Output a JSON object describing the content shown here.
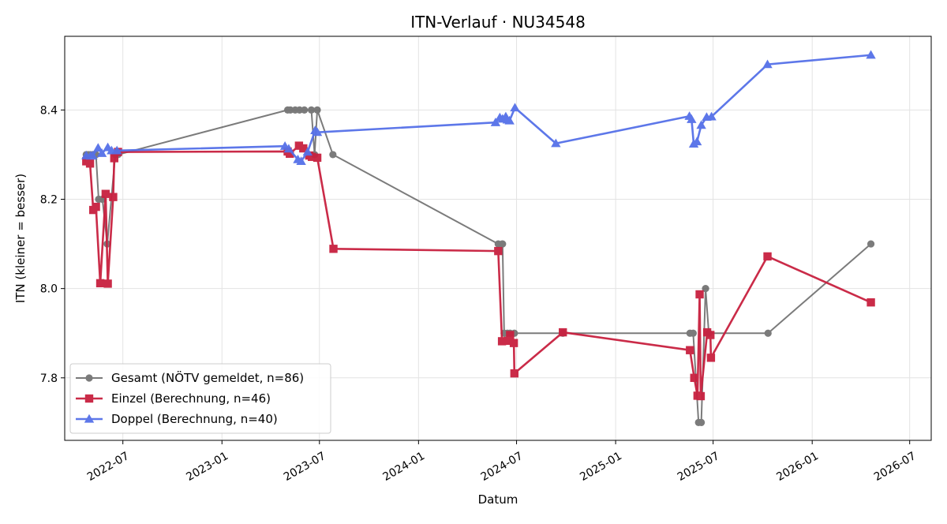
{
  "chart_data": {
    "type": "line",
    "title": "ITN-Verlauf · NU34548",
    "xlabel": "Datum",
    "ylabel": "ITN  (kleiner = besser)",
    "x_scale": "date",
    "xlim": [
      "2022-03-15",
      "2026-08-10"
    ],
    "ylim": [
      7.66,
      8.565
    ],
    "x_ticks": [
      "2022-07-01",
      "2023-01-01",
      "2023-07-01",
      "2024-01-01",
      "2024-07-01",
      "2025-01-01",
      "2025-07-01",
      "2026-01-01",
      "2026-07-01"
    ],
    "x_tick_labels": [
      "2022-07",
      "2023-01",
      "2023-07",
      "2024-01",
      "2024-07",
      "2025-01",
      "2025-07",
      "2026-01",
      "2026-07"
    ],
    "y_ticks": [
      7.8,
      8.0,
      8.2,
      8.4
    ],
    "y_tick_labels": [
      "7.8",
      "8.0",
      "8.2",
      "8.4"
    ],
    "grid": true,
    "legend_position": "lower-left",
    "series": [
      {
        "name": "Gesamt (NÖTV gemeldet, n=86)",
        "color": "#444444",
        "marker": "circle",
        "points": [
          {
            "x": "2022-04-24",
            "y": 8.3
          },
          {
            "x": "2022-04-28",
            "y": 8.3
          },
          {
            "x": "2022-05-02",
            "y": 8.3
          },
          {
            "x": "2022-05-07",
            "y": 8.3
          },
          {
            "x": "2022-05-12",
            "y": 8.3
          },
          {
            "x": "2022-05-17",
            "y": 8.2
          },
          {
            "x": "2022-05-24",
            "y": 8.2
          },
          {
            "x": "2022-06-02",
            "y": 8.1
          },
          {
            "x": "2022-06-17",
            "y": 8.3
          },
          {
            "x": "2022-06-22",
            "y": 8.3
          },
          {
            "x": "2023-05-03",
            "y": 8.4
          },
          {
            "x": "2023-05-08",
            "y": 8.4
          },
          {
            "x": "2023-05-17",
            "y": 8.4
          },
          {
            "x": "2023-05-25",
            "y": 8.4
          },
          {
            "x": "2023-06-03",
            "y": 8.4
          },
          {
            "x": "2023-06-16",
            "y": 8.4
          },
          {
            "x": "2023-06-22",
            "y": 8.3
          },
          {
            "x": "2023-06-27",
            "y": 8.4
          },
          {
            "x": "2023-07-26",
            "y": 8.3
          },
          {
            "x": "2024-05-28",
            "y": 8.1
          },
          {
            "x": "2024-06-05",
            "y": 8.1
          },
          {
            "x": "2024-06-08",
            "y": 7.9
          },
          {
            "x": "2024-06-14",
            "y": 7.9
          },
          {
            "x": "2024-06-19",
            "y": 7.9
          },
          {
            "x": "2024-06-27",
            "y": 7.9
          },
          {
            "x": "2024-09-25",
            "y": 7.9
          },
          {
            "x": "2025-05-19",
            "y": 7.9
          },
          {
            "x": "2025-05-25",
            "y": 7.9
          },
          {
            "x": "2025-06-04",
            "y": 7.7
          },
          {
            "x": "2025-06-09",
            "y": 7.7
          },
          {
            "x": "2025-06-17",
            "y": 8.0
          },
          {
            "x": "2025-06-23",
            "y": 7.9
          },
          {
            "x": "2025-10-11",
            "y": 7.9
          },
          {
            "x": "2026-04-20",
            "y": 8.1
          }
        ]
      },
      {
        "name": "Einzel (Berechnung, n=46)",
        "color": "#c8203f",
        "marker": "square",
        "points": [
          {
            "x": "2022-04-24",
            "y": 8.285
          },
          {
            "x": "2022-05-01",
            "y": 8.28
          },
          {
            "x": "2022-05-07",
            "y": 8.176
          },
          {
            "x": "2022-05-12",
            "y": 8.183
          },
          {
            "x": "2022-05-20",
            "y": 8.012
          },
          {
            "x": "2022-05-30",
            "y": 8.212
          },
          {
            "x": "2022-06-03",
            "y": 8.011
          },
          {
            "x": "2022-06-13",
            "y": 8.205
          },
          {
            "x": "2022-06-15",
            "y": 8.292
          },
          {
            "x": "2022-06-22",
            "y": 8.306
          },
          {
            "x": "2023-05-03",
            "y": 8.307
          },
          {
            "x": "2023-05-07",
            "y": 8.302
          },
          {
            "x": "2023-05-24",
            "y": 8.32
          },
          {
            "x": "2023-06-01",
            "y": 8.314
          },
          {
            "x": "2023-06-12",
            "y": 8.298
          },
          {
            "x": "2023-06-17",
            "y": 8.295
          },
          {
            "x": "2023-06-27",
            "y": 8.293
          },
          {
            "x": "2023-07-27",
            "y": 8.089
          },
          {
            "x": "2024-05-28",
            "y": 8.084
          },
          {
            "x": "2024-06-04",
            "y": 7.882
          },
          {
            "x": "2024-06-15",
            "y": 7.883
          },
          {
            "x": "2024-06-19",
            "y": 7.896
          },
          {
            "x": "2024-06-26",
            "y": 7.878
          },
          {
            "x": "2024-06-27",
            "y": 7.81
          },
          {
            "x": "2024-09-25",
            "y": 7.902
          },
          {
            "x": "2025-05-19",
            "y": 7.862
          },
          {
            "x": "2025-05-27",
            "y": 7.8
          },
          {
            "x": "2025-06-02",
            "y": 7.76
          },
          {
            "x": "2025-06-06",
            "y": 7.987
          },
          {
            "x": "2025-06-08",
            "y": 7.759
          },
          {
            "x": "2025-06-20",
            "y": 7.902
          },
          {
            "x": "2025-06-26",
            "y": 7.896
          },
          {
            "x": "2025-06-27",
            "y": 7.845
          },
          {
            "x": "2025-10-10",
            "y": 8.072
          },
          {
            "x": "2026-04-20",
            "y": 7.969
          }
        ]
      },
      {
        "name": "Doppel (Berechnung, n=40)",
        "color": "#5570e8",
        "marker": "triangle",
        "points": [
          {
            "x": "2022-04-24",
            "y": 8.298
          },
          {
            "x": "2022-05-02",
            "y": 8.297
          },
          {
            "x": "2022-05-06",
            "y": 8.298
          },
          {
            "x": "2022-05-16",
            "y": 8.315
          },
          {
            "x": "2022-05-23",
            "y": 8.303
          },
          {
            "x": "2022-06-03",
            "y": 8.316
          },
          {
            "x": "2022-06-10",
            "y": 8.309
          },
          {
            "x": "2022-06-20",
            "y": 8.309
          },
          {
            "x": "2023-04-28",
            "y": 8.319
          },
          {
            "x": "2023-05-05",
            "y": 8.313
          },
          {
            "x": "2023-05-22",
            "y": 8.289
          },
          {
            "x": "2023-05-28",
            "y": 8.285
          },
          {
            "x": "2023-06-09",
            "y": 8.306
          },
          {
            "x": "2023-06-23",
            "y": 8.354
          },
          {
            "x": "2023-06-27",
            "y": 8.35
          },
          {
            "x": "2024-05-23",
            "y": 8.372
          },
          {
            "x": "2024-05-31",
            "y": 8.383
          },
          {
            "x": "2024-06-05",
            "y": 8.38
          },
          {
            "x": "2024-06-11",
            "y": 8.385
          },
          {
            "x": "2024-06-14",
            "y": 8.378
          },
          {
            "x": "2024-06-18",
            "y": 8.376
          },
          {
            "x": "2024-06-28",
            "y": 8.405
          },
          {
            "x": "2024-09-12",
            "y": 8.325
          },
          {
            "x": "2025-05-18",
            "y": 8.386
          },
          {
            "x": "2025-05-22",
            "y": 8.379
          },
          {
            "x": "2025-05-26",
            "y": 8.324
          },
          {
            "x": "2025-06-01",
            "y": 8.329
          },
          {
            "x": "2025-06-09",
            "y": 8.366
          },
          {
            "x": "2025-06-19",
            "y": 8.384
          },
          {
            "x": "2025-06-28",
            "y": 8.385
          },
          {
            "x": "2025-10-10",
            "y": 8.502
          },
          {
            "x": "2026-04-20",
            "y": 8.523
          }
        ]
      }
    ]
  }
}
